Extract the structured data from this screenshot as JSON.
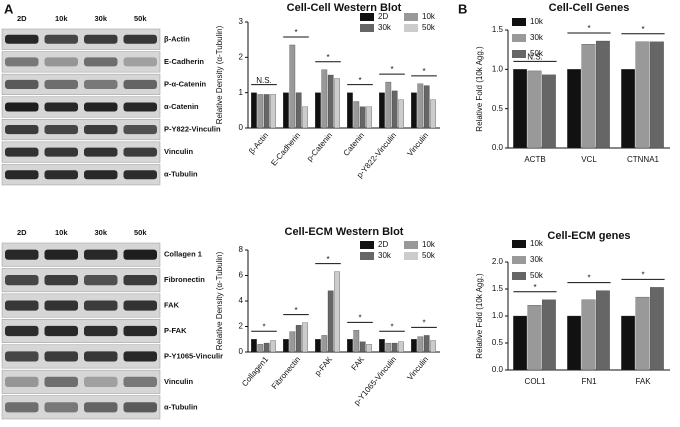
{
  "panel_labels": [
    "A",
    "B"
  ],
  "blots": [
    {
      "lanes": [
        "2D",
        "10k",
        "30k",
        "50k"
      ],
      "rows": [
        "β-Actin",
        "E-Cadherin",
        "P-α-Catenin",
        "α-Catenin",
        "P-Y822-Vinculin",
        "Vinculin",
        "α-Tubulin"
      ]
    },
    {
      "lanes": [
        "2D",
        "10k",
        "30k",
        "50k"
      ],
      "rows": [
        "Collagen 1",
        "Fibronectin",
        "FAK",
        "P-FAK",
        "P-Y1065-Vinculir",
        "Vinculin",
        "α-Tubulin"
      ]
    }
  ],
  "chart_data": [
    {
      "type": "bar",
      "title": "Cell-Cell Western Blot",
      "y_label": "Relative Density (α-Tubulin)",
      "categories": [
        "β-Actin",
        "E-Cadherin",
        "p-Catenin",
        "Catenin",
        "p-Y822-Vinculin",
        "Vinculin"
      ],
      "series": [
        {
          "name": "2D",
          "color": "#111111",
          "values": [
            1,
            1,
            1,
            1,
            1,
            1
          ]
        },
        {
          "name": "10k",
          "color": "#999999",
          "values": [
            0.95,
            2.35,
            1.65,
            0.75,
            1.3,
            1.25
          ]
        },
        {
          "name": "30k",
          "color": "#666666",
          "values": [
            0.95,
            1.0,
            1.5,
            0.6,
            1.05,
            1.2
          ]
        },
        {
          "name": "50k",
          "color": "#cccccc",
          "values": [
            0.95,
            0.6,
            1.4,
            0.6,
            0.8,
            0.8
          ]
        }
      ],
      "annotations": [
        "N.S.",
        "*",
        "*",
        "*",
        "*",
        "*"
      ],
      "ylim": [
        0,
        3
      ],
      "yticks": [
        0,
        1,
        2,
        3
      ]
    },
    {
      "type": "bar",
      "title": "Cell-ECM Western Blot",
      "y_label": "Relative Density (α-Tubulin)",
      "categories": [
        "Collagen1",
        "Fibronectin",
        "p-FAK",
        "FAK",
        "p-Y1065-Vinculin",
        "Vinculin"
      ],
      "series": [
        {
          "name": "2D",
          "color": "#111111",
          "values": [
            1,
            1,
            1,
            1,
            1,
            1
          ]
        },
        {
          "name": "10k",
          "color": "#999999",
          "values": [
            0.6,
            1.6,
            1.3,
            1.7,
            0.7,
            1.2
          ]
        },
        {
          "name": "30k",
          "color": "#666666",
          "values": [
            0.7,
            2.1,
            4.8,
            0.8,
            0.7,
            1.3
          ]
        },
        {
          "name": "50k",
          "color": "#cccccc",
          "values": [
            0.9,
            2.3,
            6.3,
            0.6,
            0.8,
            0.9
          ]
        }
      ],
      "annotations": [
        "*",
        "*",
        "*",
        "*",
        "*",
        "*"
      ],
      "ylim": [
        0,
        8
      ],
      "yticks": [
        0,
        2,
        4,
        6,
        8
      ]
    },
    {
      "type": "bar",
      "title": "Cell-Cell Genes",
      "y_label": "Relative Fold (10k Agg.)",
      "categories": [
        "ACTB",
        "VCL",
        "CTNNA1"
      ],
      "series": [
        {
          "name": "10k",
          "color": "#111111",
          "values": [
            1,
            1,
            1
          ]
        },
        {
          "name": "30k",
          "color": "#999999",
          "values": [
            0.98,
            1.32,
            1.35
          ]
        },
        {
          "name": "50k",
          "color": "#666666",
          "values": [
            0.93,
            1.36,
            1.35
          ]
        }
      ],
      "annotations": [
        "N.S.",
        "*",
        "*"
      ],
      "ylim": [
        0,
        1.5
      ],
      "yticks": [
        {
          "value": 0,
          "label": "0.0"
        },
        0.5,
        {
          "value": 1,
          "label": "1.0"
        },
        1.5
      ]
    },
    {
      "type": "bar",
      "title": "Cell-ECM genes",
      "y_label": "Relative Fold (10k Agg.)",
      "categories": [
        "COL1",
        "FN1",
        "FAK"
      ],
      "series": [
        {
          "name": "10k",
          "color": "#111111",
          "values": [
            1,
            1,
            1
          ]
        },
        {
          "name": "30k",
          "color": "#999999",
          "values": [
            1.2,
            1.3,
            1.35
          ]
        },
        {
          "name": "50k",
          "color": "#666666",
          "values": [
            1.3,
            1.47,
            1.53
          ]
        }
      ],
      "annotations": [
        "*",
        "*",
        "*"
      ],
      "ylim": [
        0,
        2
      ],
      "yticks": [
        {
          "value": 0,
          "label": "0.0"
        },
        0.5,
        {
          "value": 1,
          "label": "1.0"
        },
        1.5,
        {
          "value": 2,
          "label": "2.0"
        }
      ]
    }
  ]
}
